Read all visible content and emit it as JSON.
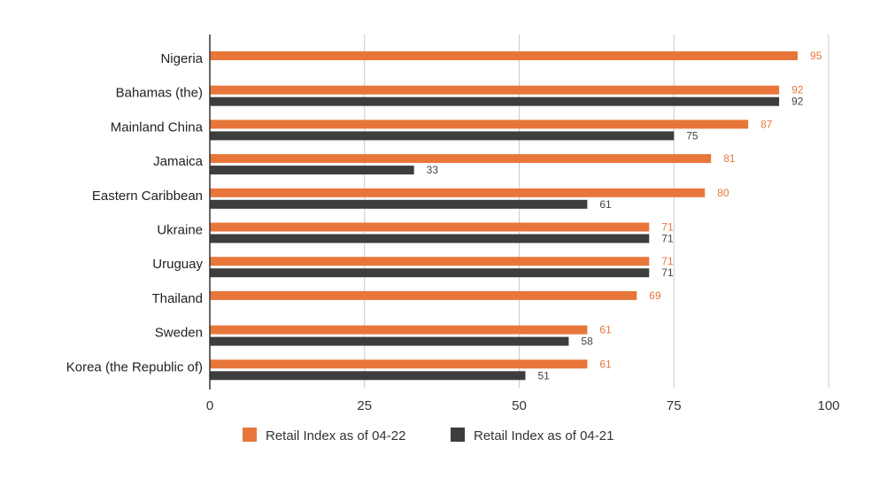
{
  "chart_data": {
    "type": "bar",
    "orientation": "horizontal",
    "categories": [
      "Nigeria",
      "Bahamas (the)",
      "Mainland China",
      "Jamaica",
      "Eastern Caribbean",
      "Ukraine",
      "Uruguay",
      "Thailand",
      "Sweden",
      "Korea (the Republic of)"
    ],
    "series": [
      {
        "name": "Retail Index as of 04-22",
        "color": "#e8763a",
        "values": [
          95,
          92,
          87,
          81,
          80,
          71,
          71,
          69,
          61,
          61
        ]
      },
      {
        "name": "Retail Index as of 04-21",
        "color": "#3d3d3d",
        "values": [
          null,
          92,
          75,
          33,
          61,
          71,
          71,
          null,
          58,
          51
        ]
      }
    ],
    "xlim": [
      0,
      100
    ],
    "xticks": [
      "0",
      "25",
      "50",
      "75",
      "100"
    ],
    "grid": true,
    "legend_position": "bottom"
  }
}
